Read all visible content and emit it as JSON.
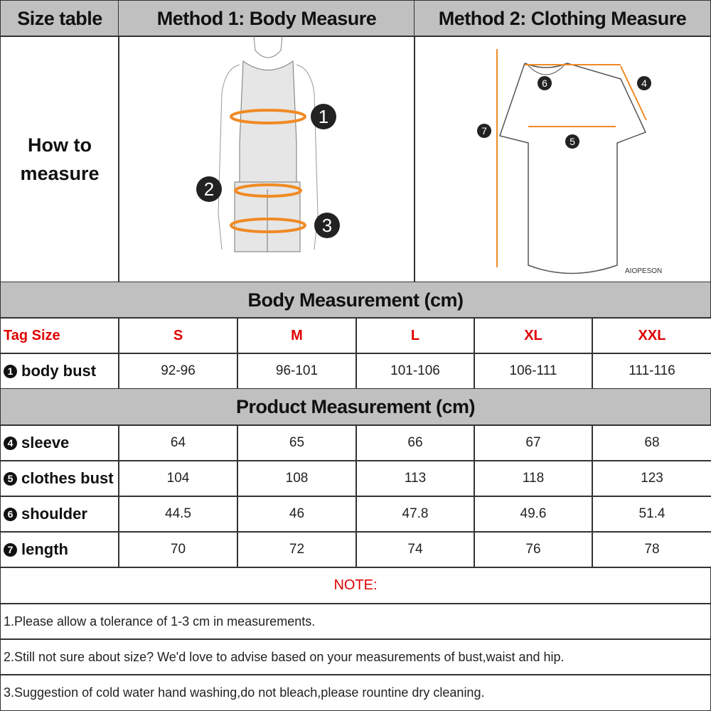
{
  "header": {
    "size_table": "Size table",
    "method1": "Method 1: Body  Measure",
    "method2": "Method 2: Clothing Measure"
  },
  "how_to": {
    "line1": "How to",
    "line2": "measure"
  },
  "illustrations": {
    "brand": "AIOPESON",
    "body_markers": [
      "1",
      "2",
      "3"
    ],
    "shirt_markers": [
      "4",
      "5",
      "6",
      "7"
    ],
    "accent": "#f08a24"
  },
  "body_section": {
    "title": "Body Measurement (cm)",
    "tag_label": "Tag Size",
    "sizes": [
      "S",
      "M",
      "L",
      "XL",
      "XXL"
    ],
    "rows": [
      {
        "num": "1",
        "label": "body bust",
        "values": [
          "92-96",
          "96-101",
          "101-106",
          "106-111",
          "111-116"
        ]
      }
    ]
  },
  "product_section": {
    "title": "Product Measurement (cm)",
    "rows": [
      {
        "num": "4",
        "label": "sleeve",
        "values": [
          "64",
          "65",
          "66",
          "67",
          "68"
        ]
      },
      {
        "num": "5",
        "label": "clothes bust",
        "values": [
          "104",
          "108",
          "113",
          "118",
          "123"
        ]
      },
      {
        "num": "6",
        "label": "shoulder",
        "values": [
          "44.5",
          "46",
          "47.8",
          "49.6",
          "51.4"
        ]
      },
      {
        "num": "7",
        "label": "length",
        "values": [
          "70",
          "72",
          "74",
          "76",
          "78"
        ]
      }
    ]
  },
  "notes": {
    "title": "NOTE:",
    "items": [
      "1.Please allow a tolerance of 1-3 cm in measurements.",
      "2.Still not sure about size? We'd love to advise based on your measurements of bust,waist and hip.",
      "3.Suggestion of cold water hand washing,do not bleach,please rountine dry cleaning."
    ]
  },
  "colors": {
    "header_bg": "#c0c0c0",
    "tag_red": "#e00000"
  }
}
